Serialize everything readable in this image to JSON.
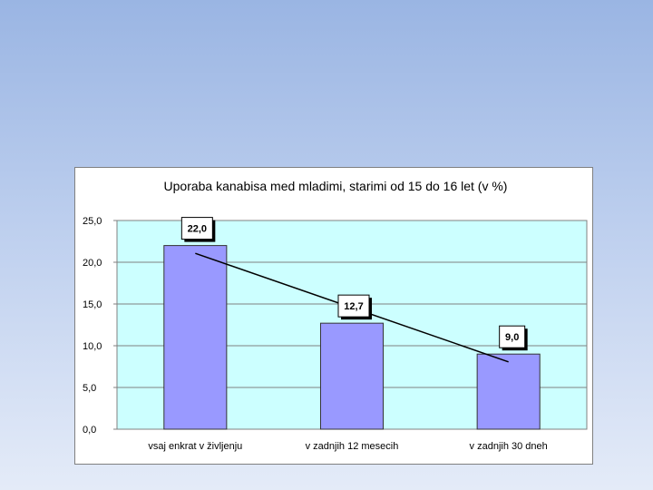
{
  "chart_data": {
    "type": "bar",
    "title": "Uporaba kanabisa med mladimi, starimi od 15 do 16 let (v %)",
    "categories": [
      "vsaj enkrat v življenju",
      "v zadnjih 12 mesecih",
      "v zadnjih 30 dneh"
    ],
    "values": [
      22.0,
      12.7,
      9.0
    ],
    "value_labels": [
      "22,0",
      "12,7",
      "9,0"
    ],
    "y_ticks": [
      "0,0",
      "5,0",
      "10,0",
      "15,0",
      "20,0",
      "25,0"
    ],
    "ylim": [
      0,
      25
    ],
    "y_step": 5,
    "trendline": true,
    "grid": true,
    "colors": {
      "bar": "#9999ff",
      "plot_background": "#ccffff",
      "trendline": "#000000"
    }
  }
}
